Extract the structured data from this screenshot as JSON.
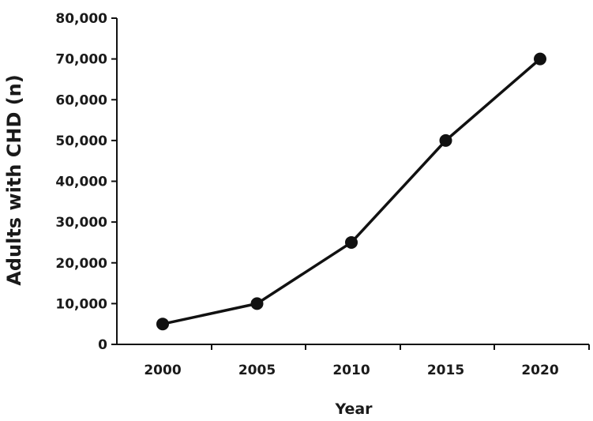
{
  "chart_data": {
    "type": "line",
    "title": "",
    "xlabel": "Year",
    "ylabel": "Adults with CHD (n)",
    "x": [
      2000,
      2005,
      2010,
      2015,
      2020
    ],
    "series": [
      {
        "values": [
          5000,
          10000,
          25000,
          50000,
          70000
        ]
      }
    ],
    "ylim": [
      0,
      80000
    ],
    "yticks": [
      0,
      10000,
      20000,
      30000,
      40000,
      50000,
      60000,
      70000,
      80000
    ],
    "ytick_labels": [
      "0",
      "10,000",
      "20,000",
      "30,000",
      "40,000",
      "50,000",
      "60,000",
      "70,000",
      "80,000"
    ],
    "xtick_labels": [
      "2000",
      "2005",
      "2010",
      "2015",
      "2020"
    ],
    "grid": false,
    "line_color": "#111111",
    "marker_color": "#111111"
  }
}
